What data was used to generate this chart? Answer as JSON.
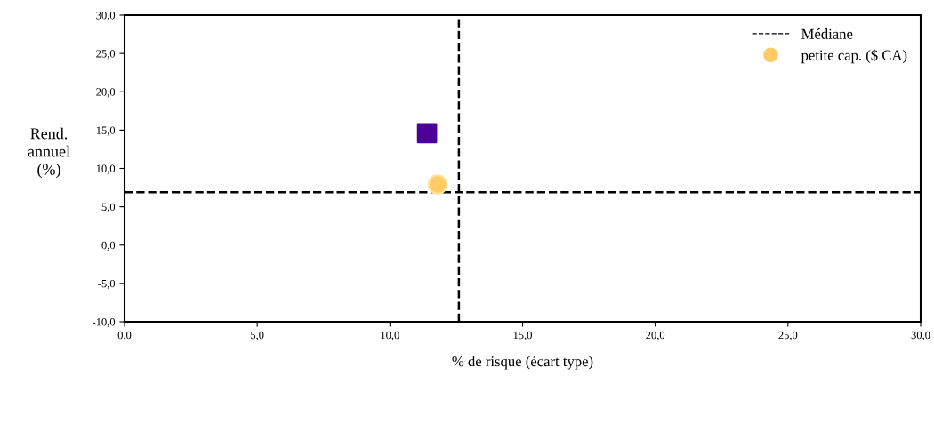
{
  "chart_data": {
    "type": "scatter",
    "xlabel": "% de risque (écart type)",
    "ylabel": "Rend.\nannuel\n(%)",
    "xlim": [
      0,
      30
    ],
    "ylim": [
      -10,
      30
    ],
    "xticks": [
      {
        "value": 0,
        "label": "0,0"
      },
      {
        "value": 5,
        "label": "5,0"
      },
      {
        "value": 10,
        "label": "10,0"
      },
      {
        "value": 15,
        "label": "15,0"
      },
      {
        "value": 20,
        "label": "20,0"
      },
      {
        "value": 25,
        "label": "25,0"
      },
      {
        "value": 30,
        "label": "30,0"
      }
    ],
    "yticks": [
      {
        "value": -10,
        "label": "-10,0"
      },
      {
        "value": -5,
        "label": "-5,0"
      },
      {
        "value": 0,
        "label": "0,0"
      },
      {
        "value": 5,
        "label": "5,0"
      },
      {
        "value": 10,
        "label": "10,0"
      },
      {
        "value": 15,
        "label": "15,0"
      },
      {
        "value": 20,
        "label": "20,0"
      },
      {
        "value": 25,
        "label": "25,0"
      },
      {
        "value": 30,
        "label": "30,0"
      }
    ],
    "series": [
      {
        "color": "#4b0097",
        "marker": "square",
        "x": [
          11.4
        ],
        "values": [
          14.6
        ]
      },
      {
        "name": "petite cap. ($ CA)",
        "color": "#fdcc66",
        "marker": "circle",
        "x": [
          11.8
        ],
        "values": [
          7.9
        ]
      }
    ],
    "ref_lines": [
      {
        "axis": "x",
        "value": 12.6,
        "line_style": "dashed",
        "color": "#000000"
      },
      {
        "axis": "y",
        "value": 6.9,
        "label": "Médiane",
        "line_style": "dashed",
        "color": "#000000"
      }
    ],
    "grid": false,
    "legend": "top right"
  }
}
